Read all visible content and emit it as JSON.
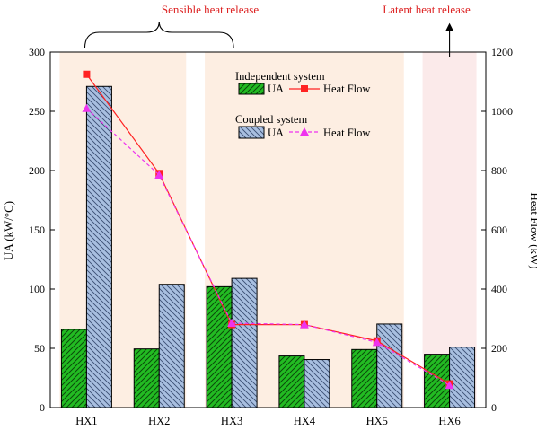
{
  "chart_data": {
    "type": "bar",
    "categories": [
      "HX1",
      "HX2",
      "HX3",
      "HX4",
      "HX5",
      "HX6"
    ],
    "xlabel": "",
    "ylabel": "UA (kW/°C)",
    "ylim": [
      0,
      300
    ],
    "yticks": [
      0,
      50,
      100,
      150,
      200,
      250,
      300
    ],
    "ylabel_right": "Heat Flow (kW)",
    "ylim_right": [
      0,
      1200
    ],
    "yticks_right": [
      0,
      200,
      400,
      600,
      800,
      1000,
      1200
    ],
    "grid": false,
    "bar_series": [
      {
        "name": "UA",
        "group": "Independent system",
        "values": [
          66,
          49.5,
          102,
          43.5,
          49,
          45
        ],
        "color": "#22bb22",
        "hatch": "forward"
      },
      {
        "name": "UA",
        "group": "Coupled system",
        "values": [
          271,
          104,
          109,
          40.5,
          70.5,
          51
        ],
        "color": "#a8bfe0",
        "hatch": "backward"
      }
    ],
    "line_series": [
      {
        "name": "Heat Flow",
        "group": "Independent system",
        "values": [
          1125,
          790,
          280,
          280,
          225,
          80
        ],
        "color": "#ff2222",
        "marker": "square",
        "dash": "solid"
      },
      {
        "name": "Heat Flow",
        "group": "Coupled system",
        "values": [
          1010,
          785,
          285,
          280,
          220,
          75
        ],
        "color": "#ee33ee",
        "marker": "triangle",
        "dash": "dashed"
      }
    ],
    "legend": {
      "placement": "top-center",
      "groups": [
        {
          "title": "Independent system",
          "bar_label": "UA",
          "line_label": "Heat Flow"
        },
        {
          "title": "Coupled system",
          "bar_label": "UA",
          "line_label": "Heat Flow"
        }
      ]
    },
    "regions": [
      {
        "name": "sensible",
        "from_category": 0,
        "to_category": 1,
        "color": "#fdeee2"
      },
      {
        "name": "sensible",
        "from_category": 2,
        "to_category": 4,
        "color": "#fdeee2"
      },
      {
        "name": "latent",
        "from_category": 5,
        "to_category": 5,
        "color": "#fbeaea"
      }
    ],
    "annotations": [
      {
        "text": "Sensible heat release",
        "color": "#dd2222",
        "kind": "brace",
        "from_category": 0,
        "to_category": 2
      },
      {
        "text": "Latent heat release",
        "color": "#dd2222",
        "kind": "arrow",
        "at_category": 5
      }
    ],
    "colors": {
      "axis": "#000000",
      "annotation": "#dd2222"
    }
  }
}
